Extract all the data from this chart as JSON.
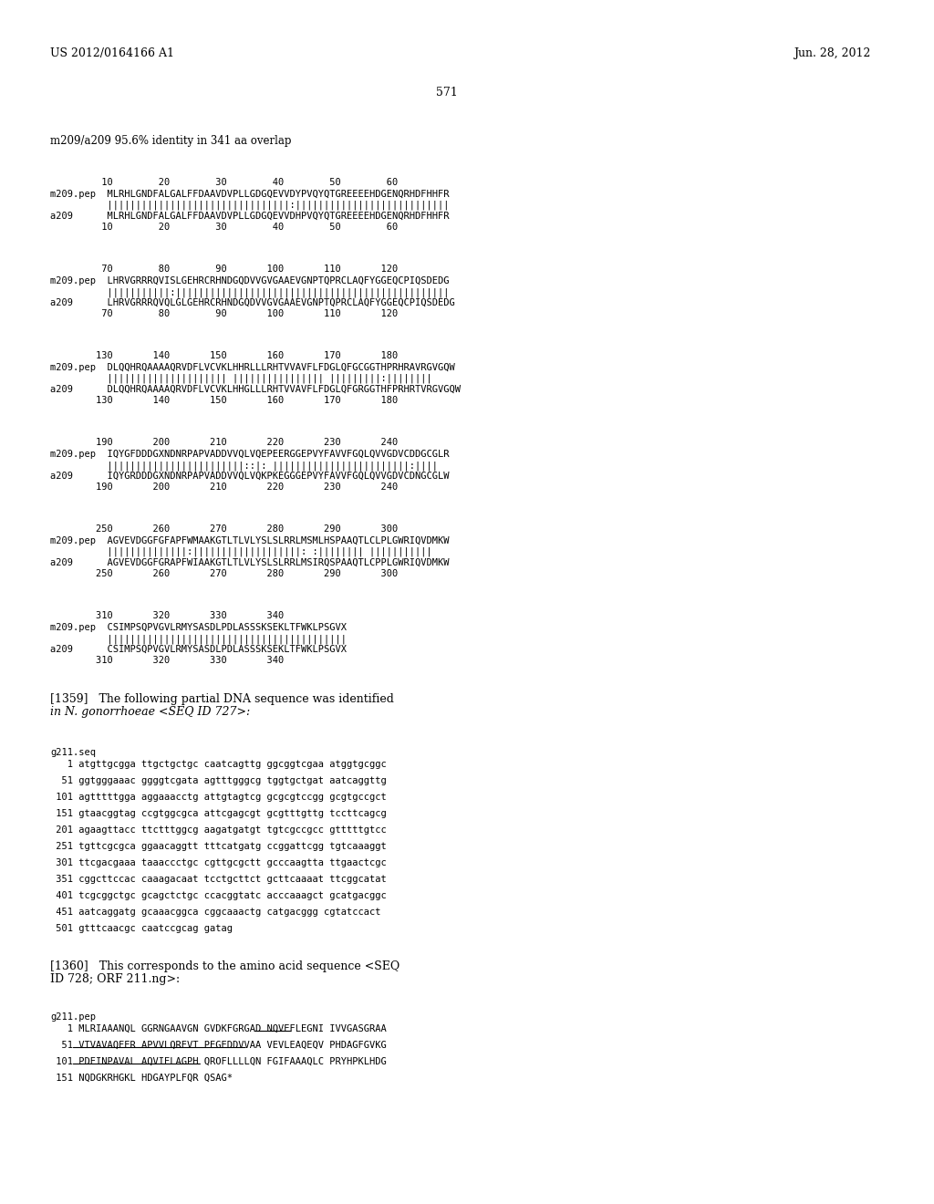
{
  "bg_color": "#ffffff",
  "header_left": "US 2012/0164166 A1",
  "header_right": "Jun. 28, 2012",
  "page_number": "571",
  "subtitle": "m209/a209 95.6% identity in 341 aa overlap",
  "alignment_blocks": [
    {
      "nums_top": "         10        20        30        40        50        60",
      "m209_pep": "m209.pep  MLRHLGNDFALGALFFDAAVDVPLLGDGQEVVDYPVQYQTGREEEEHDGENQRHDFHHFR",
      "matches": "          ||||||||||||||||||||||||||||||||:|||||||||||||||||||||||||||",
      "a209": "a209      MLRHLGNDFALGALFFDAAVDVPLLGDGQEVVDHPVQYQTGREEEEHDGENQRHDFHHFR",
      "nums_bot": "         10        20        30        40        50        60"
    },
    {
      "nums_top": "         70        80        90       100       110       120",
      "m209_pep": "m209.pep  LHRVGRRRQVISLGEHRCRHNDGQDVVGVGAAEVGNPTQPRCLAQFYGGEQCPIQSDEDG",
      "matches": "          |||||||||||:||||||||||||||||||||||||||||||||||||||||||||||||",
      "a209": "a209      LHRVGRRRQVQLGLGEHRCRHNDGQDVVGVGAAEVGNPTQPRCLAQFYGGEQCPIQSDEDG",
      "nums_bot": "         70        80        90       100       110       120"
    },
    {
      "nums_top": "        130       140       150       160       170       180",
      "m209_pep": "m209.pep  DLQQHRQAAAAQRVDFLVCVKLHHRLLLRHTVVAVFLFDGLQFGCGGTHPRHRAVRGVGQW",
      "matches": "          ||||||||||||||||||||| |||||||||||||||| |||||||||:||||||||",
      "a209": "a209      DLQQHRQAAAAQRVDFLVCVKLHHGLLLRHTVVAVFLFDGLQFGRGGTHFPRHRTVRGVGQW",
      "nums_bot": "        130       140       150       160       170       180"
    },
    {
      "nums_top": "        190       200       210       220       230       240",
      "m209_pep": "m209.pep  IQYGFDDDGXNDNRPAPVADDVVQLVQEPEERGGEPVYFAVVFGQLQVVGDVCDDGCGLR",
      "matches": "          ||||||||||||||||||||||||::|: ||||||||||||||||||||||||:||||",
      "a209": "a209      IQYGRDDDGXNDNRPAPVADDVVQLVQKPKEGGGEPVYFAVVFGQLQVVGDVCDNGCGLW",
      "nums_bot": "        190       200       210       220       230       240"
    },
    {
      "nums_top": "        250       260       270       280       290       300",
      "m209_pep": "m209.pep  AGVEVDGGFGFAPFWMAAKGTLTLVLYSLSLRRLMSMLHSPAAQTLCLPLGWRIQVDMKW",
      "matches": "          ||||||||||||||:|||||||||||||||||||: :|||||||| |||||||||||",
      "a209": "a209      AGVEVDGGFGRAPFWIAAKGTLTLVLYSLSLRRLMSIRQSPAAQTLCPPLGWRIQVDMKW",
      "nums_bot": "        250       260       270       280       290       300"
    },
    {
      "nums_top": "        310       320       330       340",
      "m209_pep": "m209.pep  CSIMPSQPVGVLRMYSASDLPDLASSSKSEKLTFWKLPSGVX",
      "matches": "          ||||||||||||||||||||||||||||||||||||||||||",
      "a209": "a209      CSIMPSQPVGVLRMYSASDLPDLASSSKSEKLTFWKLPSGVX",
      "nums_bot": "        310       320       330       340"
    }
  ],
  "paragraph_1359": "[1359]   The following partial DNA sequence was identified\nin N. gonorrhoeae <SEQ ID 727>:",
  "seq_label": "g211.seq",
  "dna_lines": [
    "   1 atgttgcgga ttgctgctgc caatcagttg ggcggtcgaa atggtgcggc",
    "  51 ggtgggaaac ggggtcgata agtttgggcg tggtgctgat aatcaggttg",
    " 101 agtttttgga aggaaacctg attgtagtcg gcgcgtccgg gcgtgccgct",
    " 151 gtaacggtag ccgtggcgca attcgagcgt gcgtttgttg tccttcagcg",
    " 201 agaagttacc ttctttggcg aagatgatgt tgtcgccgcc gtttttgtcc",
    " 251 tgttcgcgca ggaacaggtt tttcatgatg ccggattcgg tgtcaaaggt",
    " 301 ttcgacgaaa taaaccctgc cgttgcgctt gcccaagtta ttgaactcgc",
    " 351 cggcttccac caaagacaat tcctgcttct gcttcaaaat ttcggcatat",
    " 401 tcgcggctgc gcagctctgc ccacggtatc acccaaagct gcatgacggc",
    " 451 aatcaggatg gcaaacggca cggcaaactg catgacggg cgtatccact",
    " 501 gtttcaacgc caatccgcag gatag"
  ],
  "paragraph_1360": "[1360]   This corresponds to the amino acid sequence <SEQ\nID 728; ORF 211.ng>:",
  "pep_label": "g211.pep",
  "pep_lines": [
    "   1 MLRIAAANQL GGRNGAAVGN GVDKFGRGAD NQVEFLEGNI IVVGASGRAA",
    "  51 VTVAVAQFER APVVLQREVT PEGEDDVVAA VEVLEAQEQV PHDAGFGVKG",
    " 101 PDEINPAVAL AQVIELAGPH QROFLLLLQN FGIFAAAQLC PRYHPKLHDG",
    " 151 NQDGKRHGKL HDGAYPLFQR QSAG*"
  ],
  "pep_underline_lines": [
    "IVVGASGRAA",
    "VTVAVAQFER APVVLQREVT PEGEDDVVAA VEVLEAQEQV",
    "PDEINPAVAL AQVIELAGPH QROFLLLLQN"
  ]
}
